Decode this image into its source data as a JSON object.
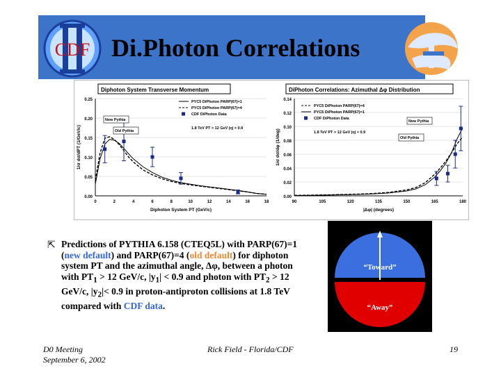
{
  "slide": {
    "title": "Di.Photon Correlations",
    "logo_text": "CDF",
    "bullet_text_parts": {
      "p1": "Predictions of PYTHIA 6.158 (CTEQ5L) with PARP(67)=1 (",
      "new_default": "new default",
      "p2": ") and PARP(67)=4 (",
      "old_default": "old default",
      "p3": ") for diphoton system PT and the azimuthal angle, ",
      "dphi": "Δφ",
      "p4": ", between a photon with PT",
      "sub1": "1",
      "p5": " > 12 GeV/c, |y",
      "sub2": "1",
      "p6": "| < 0.9 and photon with PT",
      "sub3": "2",
      "p7": " > 12 GeV/c, |y",
      "sub4": "2",
      "p8": "|< 0.9 in proton-antiproton collisions at 1.8 TeV compared with ",
      "cdf_data": "CDF data",
      "p9": "."
    },
    "dial": {
      "toward_label": "“Toward”",
      "away_label": "“Away”",
      "toward_color": "#3b6fe0",
      "away_color": "#e00000"
    },
    "footer": {
      "meeting": "D0 Meeting",
      "date": "September 6, 2002",
      "author": "Rick Field - Florida/CDF",
      "page": "19"
    },
    "colors": {
      "header_bg": "#3b74c8",
      "new_default": "#3366dd",
      "old_default": "#ee8833"
    }
  },
  "chart_data": [
    {
      "type": "line",
      "title": "Diphoton System Transverse Momentum",
      "xlabel": "Diphoton System PT (GeV/c)",
      "ylabel": "1/σ dσ/dPT (1/GeV/c)",
      "xlim": [
        0,
        18
      ],
      "ylim": [
        0,
        0.25
      ],
      "xticks": [
        "0",
        "2",
        "4",
        "6",
        "8",
        "10",
        "12",
        "14",
        "16",
        "18"
      ],
      "yticks": [
        "0.00",
        "0.05",
        "0.10",
        "0.15",
        "0.20",
        "0.25"
      ],
      "legend": [
        "PYC5 DiPhoton PARP(67)=1",
        "PYC5 DiPhoton PARP(67)=4",
        "CDF DiPhoton Data"
      ],
      "legend_position": "top-right",
      "annotation": "1.8 TeV PT > 12 GeV |η| < 0.9",
      "callouts": [
        "New Pythia",
        "Old Pythia"
      ],
      "series": [
        {
          "name": "PYC5 DiPhoton PARP(67)=1",
          "style": "solid",
          "x": [
            0,
            0.5,
            1,
            1.5,
            2,
            2.5,
            3,
            3.5,
            4,
            5,
            6,
            7,
            8,
            9,
            10,
            11,
            12,
            13,
            14,
            15,
            16,
            17,
            18
          ],
          "y": [
            0.03,
            0.095,
            0.133,
            0.145,
            0.143,
            0.135,
            0.122,
            0.108,
            0.095,
            0.075,
            0.06,
            0.048,
            0.04,
            0.034,
            0.03,
            0.026,
            0.023,
            0.02,
            0.017,
            0.014,
            0.01,
            0.006,
            0.004
          ]
        },
        {
          "name": "PYC5 DiPhoton PARP(67)=4",
          "style": "dashed",
          "x": [
            0,
            0.5,
            1,
            1.5,
            2,
            2.5,
            3,
            3.5,
            4,
            5,
            6,
            7,
            8,
            9,
            10,
            11,
            12,
            13,
            14,
            15,
            16,
            17,
            18
          ],
          "y": [
            0.04,
            0.11,
            0.148,
            0.152,
            0.145,
            0.132,
            0.116,
            0.1,
            0.087,
            0.067,
            0.054,
            0.044,
            0.037,
            0.032,
            0.028,
            0.025,
            0.022,
            0.019,
            0.016,
            0.013,
            0.01,
            0.006,
            0.004
          ]
        },
        {
          "name": "CDF DiPhoton Data",
          "style": "points",
          "x": [
            1,
            3,
            6,
            9,
            15
          ],
          "y": [
            0.12,
            0.14,
            0.1,
            0.045,
            0.01
          ],
          "err": [
            0.035,
            0.05,
            0.025,
            0.015,
            0.005
          ]
        }
      ]
    },
    {
      "type": "line",
      "title": "DiPhoton Correlations: Azimuthal Δφ Distribution",
      "xlabel": "|Δφ| (degrees)",
      "ylabel": "1/σ dσ/dφ (1/deg)",
      "xlim": [
        90,
        180
      ],
      "ylim": [
        0,
        0.14
      ],
      "xticks": [
        "90",
        "105",
        "120",
        "135",
        "150",
        "165",
        "180"
      ],
      "yticks": [
        "0.00",
        "0.02",
        "0.04",
        "0.06",
        "0.08",
        "0.10",
        "0.12",
        "0.14"
      ],
      "legend": [
        "PYC5 DiPhoton PARP(67)=4",
        "PYC5 DiPhoton PARP(67)=1",
        "CDF DiPhoton Data"
      ],
      "legend_position": "top-left",
      "annotation": "1.8 TeV PT > 12 GeV |η| < 0.9",
      "callouts": [
        "New Pythia",
        "Old Pythia"
      ],
      "series": [
        {
          "name": "PYC5 DiPhoton PARP(67)=1",
          "style": "solid",
          "x": [
            90,
            100,
            110,
            120,
            130,
            140,
            150,
            155,
            160,
            165,
            168,
            171,
            174,
            177,
            180
          ],
          "y": [
            0.0005,
            0.0008,
            0.0012,
            0.0018,
            0.0025,
            0.004,
            0.007,
            0.01,
            0.016,
            0.027,
            0.036,
            0.047,
            0.062,
            0.082,
            0.098
          ]
        },
        {
          "name": "PYC5 DiPhoton PARP(67)=4",
          "style": "dashed",
          "x": [
            90,
            100,
            110,
            120,
            130,
            140,
            150,
            155,
            160,
            165,
            168,
            171,
            174,
            177,
            180
          ],
          "y": [
            0.0007,
            0.001,
            0.0015,
            0.0022,
            0.003,
            0.0048,
            0.0085,
            0.012,
            0.019,
            0.031,
            0.04,
            0.05,
            0.062,
            0.075,
            0.085
          ]
        },
        {
          "name": "CDF DiPhoton Data",
          "style": "points",
          "x": [
            166,
            172,
            176,
            179
          ],
          "y": [
            0.025,
            0.032,
            0.06,
            0.097
          ],
          "err": [
            0.01,
            0.012,
            0.02,
            0.032
          ]
        }
      ]
    }
  ]
}
